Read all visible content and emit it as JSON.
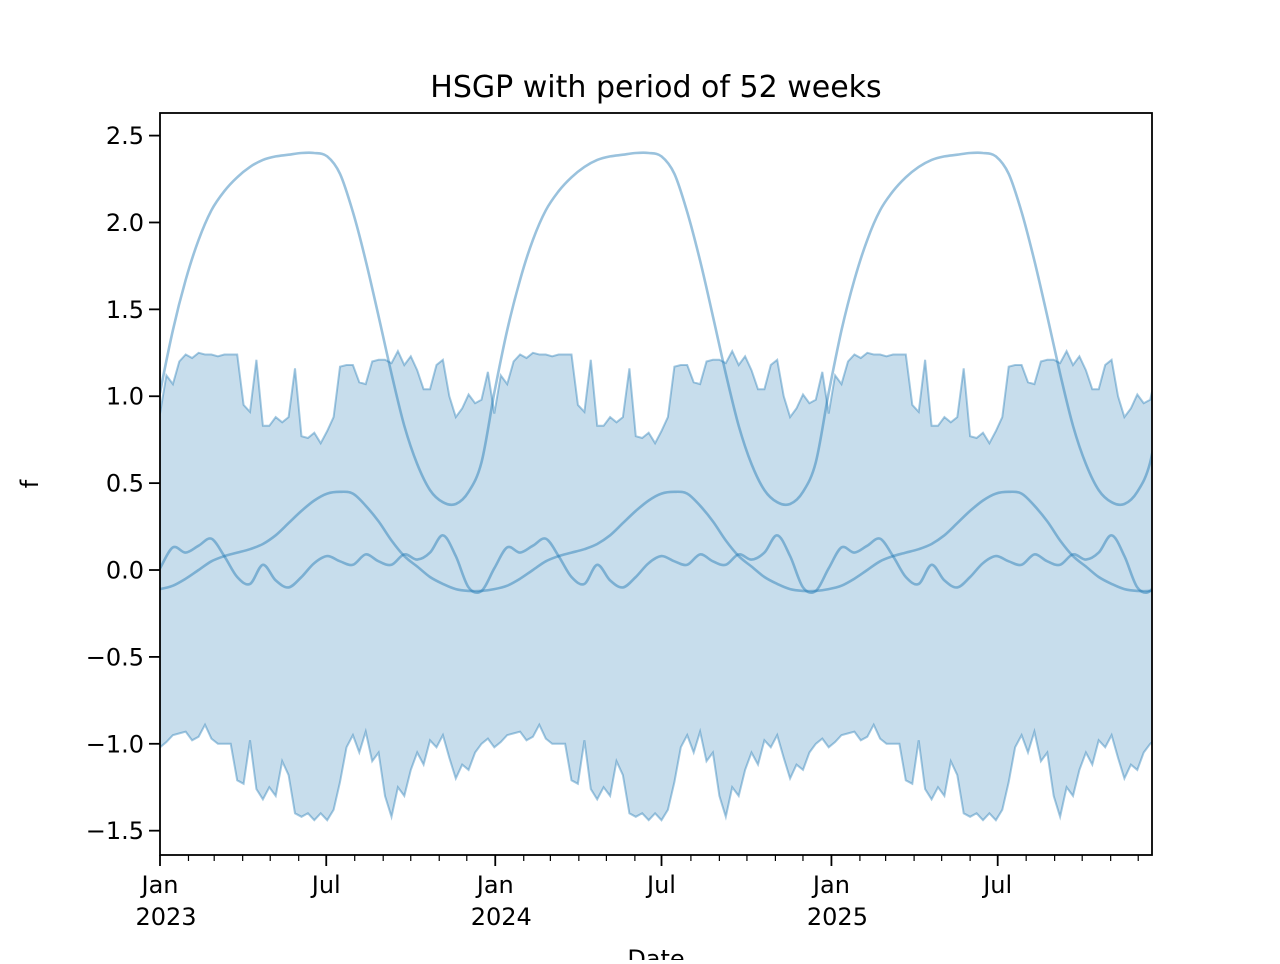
{
  "chart_data": {
    "type": "line",
    "title": "HSGP with period of 52 weeks",
    "xlabel": "Date",
    "ylabel": "f",
    "period_weeks": 52,
    "ylim": [
      -1.64,
      2.63
    ],
    "xlim_days": [
      0,
      1080
    ],
    "grid": false,
    "legend": "none",
    "y_ticks": [
      {
        "value": 2.5,
        "label": "2.5"
      },
      {
        "value": 2.0,
        "label": "2.0"
      },
      {
        "value": 1.5,
        "label": "1.5"
      },
      {
        "value": 1.0,
        "label": "1.0"
      },
      {
        "value": 0.5,
        "label": "0.5"
      },
      {
        "value": 0.0,
        "label": "0.0"
      },
      {
        "value": -0.5,
        "label": "−0.5"
      },
      {
        "value": -1.0,
        "label": "−1.0"
      },
      {
        "value": -1.5,
        "label": "−1.5"
      }
    ],
    "x_major_ticks": [
      {
        "day": 0,
        "label": "Jan",
        "year": "2023"
      },
      {
        "day": 181,
        "label": "Jul",
        "year": ""
      },
      {
        "day": 365,
        "label": "Jan",
        "year": "2024"
      },
      {
        "day": 546,
        "label": "Jul",
        "year": ""
      },
      {
        "day": 731,
        "label": "Jan",
        "year": "2025"
      },
      {
        "day": 912,
        "label": "Jul",
        "year": ""
      }
    ],
    "x_minor_tick_days": [
      31,
      59,
      90,
      120,
      151,
      212,
      243,
      273,
      304,
      334,
      396,
      425,
      456,
      486,
      517,
      578,
      609,
      639,
      670,
      700,
      762,
      790,
      821,
      851,
      882,
      943,
      974,
      1004,
      1035,
      1065
    ],
    "hdi_band": {
      "description": "jagged weekly credible band, repeats each 52-week period",
      "upper_weekly": [
        0.9,
        1.12,
        1.07,
        1.2,
        1.24,
        1.22,
        1.25,
        1.24,
        1.24,
        1.23,
        1.24,
        1.24,
        1.24,
        0.95,
        0.91,
        1.21,
        0.83,
        0.83,
        0.88,
        0.85,
        0.88,
        1.16,
        0.77,
        0.76,
        0.79,
        0.73,
        0.8,
        0.88,
        1.17,
        1.18,
        1.18,
        1.08,
        1.07,
        1.2,
        1.21,
        1.21,
        1.19,
        1.26,
        1.18,
        1.23,
        1.15,
        1.04,
        1.04,
        1.18,
        1.21,
        1.0,
        0.88,
        0.93,
        1.01,
        0.96,
        0.98,
        1.14
      ],
      "lower_weekly": [
        -1.02,
        -0.99,
        -0.95,
        -0.94,
        -0.93,
        -0.98,
        -0.96,
        -0.89,
        -0.97,
        -1.0,
        -1.0,
        -1.0,
        -1.21,
        -1.23,
        -0.98,
        -1.26,
        -1.32,
        -1.25,
        -1.3,
        -1.1,
        -1.18,
        -1.4,
        -1.42,
        -1.4,
        -1.44,
        -1.4,
        -1.44,
        -1.38,
        -1.22,
        -1.02,
        -0.95,
        -1.05,
        -0.93,
        -1.1,
        -1.05,
        -1.3,
        -1.42,
        -1.25,
        -1.3,
        -1.15,
        -1.05,
        -1.12,
        -0.98,
        -1.02,
        -0.95,
        -1.08,
        -1.2,
        -1.12,
        -1.15,
        -1.05,
        -1.0,
        -0.97
      ]
    },
    "sample_lines": [
      {
        "name": "large-amplitude-sample",
        "week_step": 2,
        "values": [
          1.02,
          1.38,
          1.67,
          1.9,
          2.07,
          2.18,
          2.26,
          2.32,
          2.36,
          2.38,
          2.39,
          2.4,
          2.4,
          2.38,
          2.28,
          2.06,
          1.78,
          1.46,
          1.13,
          0.83,
          0.61,
          0.46,
          0.39,
          0.38,
          0.45,
          0.62
        ]
      },
      {
        "name": "medium-amplitude-sample",
        "week_step": 2,
        "values": [
          -0.11,
          -0.09,
          -0.05,
          0.0,
          0.05,
          0.08,
          0.1,
          0.12,
          0.15,
          0.2,
          0.27,
          0.34,
          0.4,
          0.44,
          0.45,
          0.44,
          0.37,
          0.28,
          0.17,
          0.08,
          0.02,
          -0.04,
          -0.08,
          -0.11,
          -0.12,
          -0.12
        ]
      },
      {
        "name": "small-amplitude-sample",
        "week_step": 2,
        "values": [
          0.01,
          0.13,
          0.1,
          0.14,
          0.18,
          0.08,
          -0.04,
          -0.08,
          0.03,
          -0.06,
          -0.1,
          -0.04,
          0.04,
          0.08,
          0.05,
          0.03,
          0.09,
          0.05,
          0.03,
          0.09,
          0.06,
          0.1,
          0.2,
          0.08,
          -0.1,
          -0.12
        ]
      }
    ],
    "colors": {
      "line": "#1f77b4",
      "line_opacity": 0.45,
      "band_fill": "#1f77b4",
      "band_fill_opacity": 0.25,
      "band_edge_opacity": 0.4,
      "axis": "#000000",
      "background": "#ffffff"
    }
  }
}
